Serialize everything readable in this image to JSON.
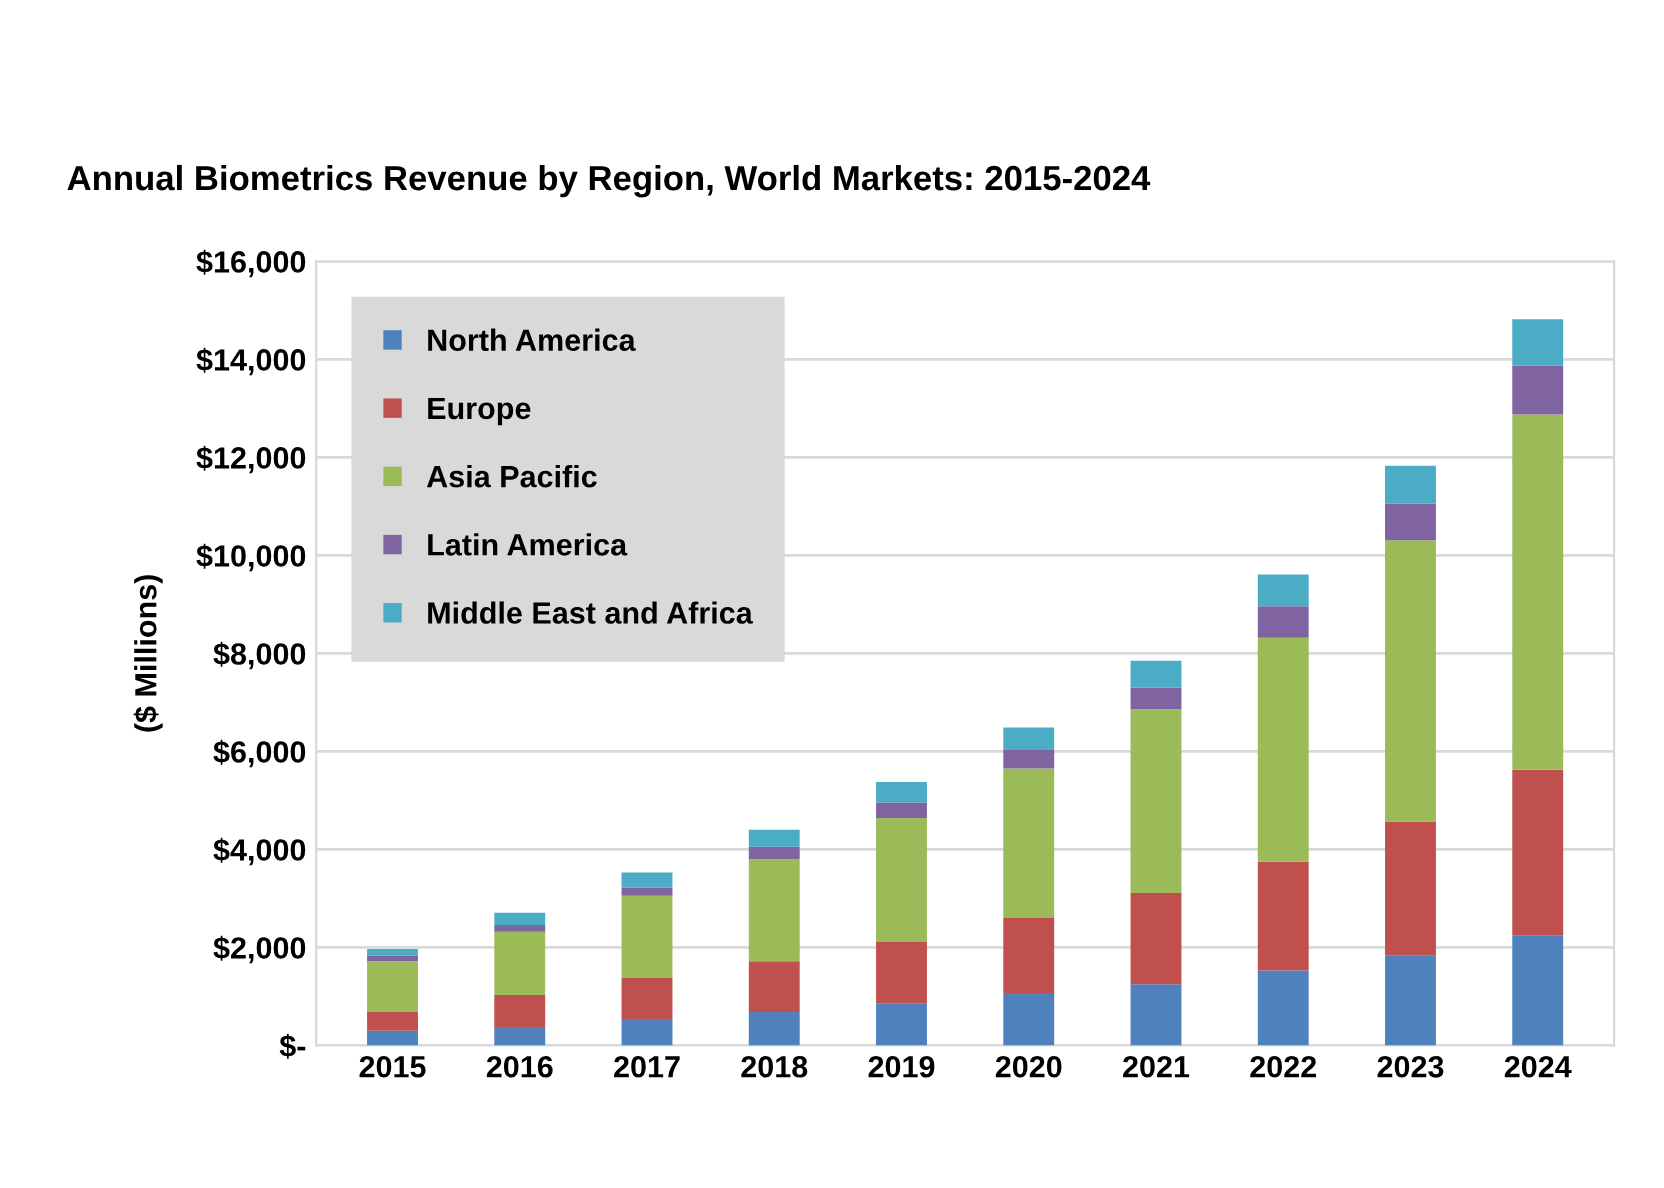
{
  "chart_data": {
    "type": "bar",
    "title": "Annual Biometrics Revenue by Region, World Markets: 2015-2024",
    "ylabel": "($ Millions)",
    "categories": [
      "2015",
      "2016",
      "2017",
      "2018",
      "2019",
      "2020",
      "2021",
      "2022",
      "2023",
      "2024"
    ],
    "stacked": true,
    "series": [
      {
        "name": "North America",
        "color": "#4f81bd",
        "values": [
          300,
          375,
          540,
          680,
          860,
          1070,
          1250,
          1530,
          1830,
          2250
        ]
      },
      {
        "name": "Europe",
        "color": "#c0504d",
        "values": [
          380,
          655,
          835,
          1040,
          1250,
          1530,
          1860,
          2220,
          2740,
          3375
        ]
      },
      {
        "name": "Asia Pacific",
        "color": "#9bbb59",
        "values": [
          1040,
          1290,
          1680,
          2080,
          2530,
          3050,
          3750,
          4570,
          5740,
          7250
        ]
      },
      {
        "name": "Latin America",
        "color": "#8064a2",
        "values": [
          110,
          140,
          165,
          255,
          320,
          380,
          440,
          640,
          750,
          1000
        ]
      },
      {
        "name": "Middle East and Africa",
        "color": "#4bacc6",
        "values": [
          140,
          250,
          310,
          345,
          415,
          460,
          550,
          650,
          770,
          945
        ]
      }
    ],
    "ylim": [
      0,
      16000
    ],
    "yticks": [
      {
        "value": 0,
        "label": "$-"
      },
      {
        "value": 2000,
        "label": "$2,000"
      },
      {
        "value": 4000,
        "label": "$4,000"
      },
      {
        "value": 6000,
        "label": "$6,000"
      },
      {
        "value": 8000,
        "label": "$8,000"
      },
      {
        "value": 10000,
        "label": "$10,000"
      },
      {
        "value": 12000,
        "label": "$12,000"
      },
      {
        "value": 14000,
        "label": "$14,000"
      },
      {
        "value": 16000,
        "label": "$16,000"
      }
    ],
    "grid": "y",
    "legend": "top left"
  }
}
